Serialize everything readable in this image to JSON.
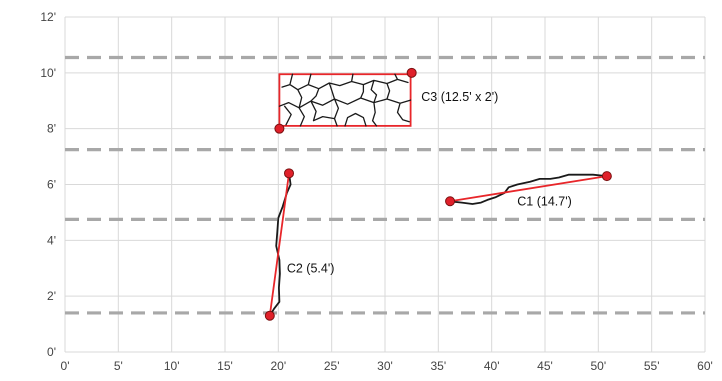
{
  "chart_data": {
    "type": "scatter",
    "title": "",
    "xlabel": "",
    "ylabel": "",
    "xlim": [
      0,
      60
    ],
    "ylim": [
      0,
      12
    ],
    "grid": true,
    "x_ticks": [
      {
        "value": 0,
        "label": "0'"
      },
      {
        "value": 5,
        "label": "5'"
      },
      {
        "value": 10,
        "label": "10'"
      },
      {
        "value": 15,
        "label": "15'"
      },
      {
        "value": 20,
        "label": "20'"
      },
      {
        "value": 25,
        "label": "25'"
      },
      {
        "value": 30,
        "label": "30'"
      },
      {
        "value": 35,
        "label": "35'"
      },
      {
        "value": 40,
        "label": "40'"
      },
      {
        "value": 45,
        "label": "45'"
      },
      {
        "value": 50,
        "label": "50'"
      },
      {
        "value": 55,
        "label": "55'"
      },
      {
        "value": 60,
        "label": "60'"
      }
    ],
    "y_ticks": [
      {
        "value": 0,
        "label": "0'"
      },
      {
        "value": 2,
        "label": "2'"
      },
      {
        "value": 4,
        "label": "4'"
      },
      {
        "value": 6,
        "label": "6'"
      },
      {
        "value": 8,
        "label": "8'"
      },
      {
        "value": 10,
        "label": "10'"
      },
      {
        "value": 12,
        "label": "12'"
      }
    ],
    "dashed_lines_y": [
      1.4,
      4.75,
      7.25,
      10.55
    ],
    "colors": {
      "crack": "#1a1a1a",
      "measure_line": "#e8262a",
      "marker_fill": "#e0202a",
      "marker_edge": "#7a1010",
      "grid": "#d9d9d9",
      "dashed": "#a8a8a8"
    },
    "cracks": [
      {
        "id": "C1",
        "label": "C1 (14.7')",
        "start": [
          36.1,
          5.4
        ],
        "end": [
          50.8,
          6.3
        ],
        "trace": [
          [
            36.1,
            5.4
          ],
          [
            37.2,
            5.35
          ],
          [
            38.2,
            5.3
          ],
          [
            39.0,
            5.35
          ],
          [
            39.6,
            5.45
          ],
          [
            40.4,
            5.55
          ],
          [
            41.2,
            5.7
          ],
          [
            41.6,
            5.9
          ],
          [
            42.4,
            6.0
          ],
          [
            43.6,
            6.1
          ],
          [
            44.5,
            6.2
          ],
          [
            45.5,
            6.2
          ],
          [
            46.3,
            6.25
          ],
          [
            47.2,
            6.35
          ],
          [
            48.5,
            6.35
          ],
          [
            49.5,
            6.35
          ],
          [
            50.8,
            6.3
          ]
        ],
        "label_pos": [
          42.4,
          5.25
        ]
      },
      {
        "id": "C2",
        "label": "C2 (5.4')",
        "start": [
          19.2,
          1.3
        ],
        "end": [
          21.0,
          6.4
        ],
        "trace": [
          [
            19.2,
            1.3
          ],
          [
            19.6,
            1.55
          ],
          [
            20.1,
            1.8
          ],
          [
            20.05,
            2.3
          ],
          [
            20.15,
            2.8
          ],
          [
            20.1,
            3.3
          ],
          [
            19.8,
            3.8
          ],
          [
            19.9,
            4.3
          ],
          [
            20.0,
            4.8
          ],
          [
            20.4,
            5.2
          ],
          [
            20.8,
            5.7
          ],
          [
            21.15,
            6.0
          ],
          [
            21.0,
            6.4
          ]
        ],
        "label_pos": [
          20.8,
          2.85
        ]
      },
      {
        "id": "C3",
        "label": "C3 (12.5' x 2')",
        "start": [
          20.1,
          8.0
        ],
        "end": [
          32.5,
          10.0
        ],
        "box": {
          "x0": 20.1,
          "x1": 32.4,
          "y0": 8.1,
          "y1": 9.95
        },
        "label_pos": [
          33.4,
          9.0
        ]
      }
    ]
  }
}
